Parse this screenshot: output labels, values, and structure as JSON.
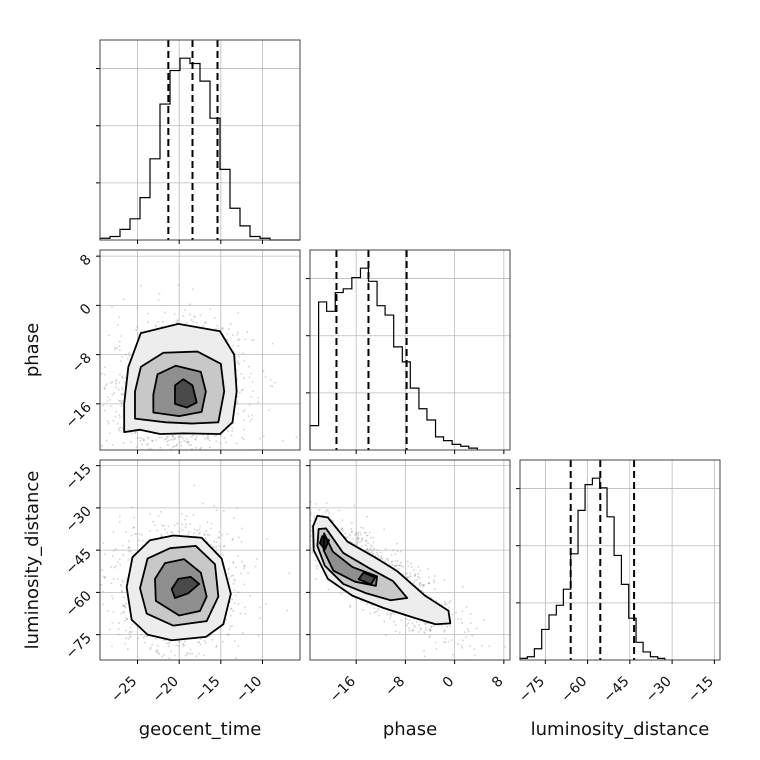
{
  "chart_data": {
    "type": "corner",
    "parameters": [
      "geocent_time",
      "phase",
      "luminosity_distance"
    ],
    "axis_labels": {
      "geocent_time": "geocent_time",
      "phase": "phase",
      "luminosity_distance": "luminosity_distance"
    },
    "ranges": {
      "geocent_time": [
        -29.5,
        -5.5
      ],
      "phase": [
        -23.5,
        9.0
      ],
      "luminosity_distance": [
        -84.0,
        -13.0
      ]
    },
    "ticks": {
      "geocent_time": [
        -25,
        -20,
        -15,
        -10
      ],
      "phase": [
        -16,
        -8,
        0,
        8
      ],
      "luminosity_distance": [
        -75,
        -60,
        -45,
        -30,
        -15
      ]
    },
    "diag_ticks_y_count": 3,
    "grid": true,
    "marginals": [
      {
        "parameter": "geocent_time",
        "quantiles": [
          -21.3,
          -18.4,
          -15.4
        ],
        "edges": [
          -29.5,
          -28.3,
          -27.1,
          -25.9,
          -24.7,
          -23.5,
          -22.3,
          -21.1,
          -19.9,
          -18.7,
          -17.5,
          -16.3,
          -15.1,
          -13.9,
          -12.7,
          -11.5,
          -10.3,
          -9.1,
          -7.9,
          -6.7,
          -5.5
        ],
        "counts": [
          1,
          2,
          6,
          12,
          24,
          46,
          77,
          96,
          103,
          100,
          90,
          69,
          40,
          18,
          8,
          2,
          1,
          0,
          0,
          0
        ]
      },
      {
        "parameter": "phase",
        "quantiles": [
          -19.2,
          -14.0,
          -7.8
        ],
        "edges": [
          -23.5,
          -22.1,
          -20.8,
          -19.4,
          -18.1,
          -16.7,
          -15.3,
          -14.0,
          -12.6,
          -11.3,
          -9.9,
          -8.5,
          -7.2,
          -5.8,
          -4.5,
          -3.1,
          -1.8,
          -0.4,
          1.0,
          2.3,
          3.7
        ],
        "counts": [
          13,
          79,
          74,
          84,
          86,
          92,
          97,
          90,
          77,
          72,
          55,
          47,
          33,
          22,
          16,
          7,
          5,
          3,
          2,
          1
        ]
      },
      {
        "parameter": "luminosity_distance",
        "quantiles": [
          -66.0,
          -55.5,
          -43.5
        ],
        "edges": [
          -84.0,
          -81.4,
          -78.9,
          -76.3,
          -73.7,
          -71.1,
          -68.6,
          -66.0,
          -63.4,
          -60.9,
          -58.3,
          -55.7,
          -53.1,
          -50.6,
          -48.0,
          -45.4,
          -42.8,
          -40.3,
          -37.7,
          -35.1,
          -32.6
        ],
        "counts": [
          1,
          2,
          7,
          19,
          28,
          34,
          44,
          66,
          93,
          109,
          113,
          107,
          89,
          65,
          47,
          26,
          11,
          5,
          2,
          1
        ]
      }
    ],
    "pairs": [
      {
        "x": "geocent_time",
        "y": "phase",
        "contours": [
          [
            [
              -26.6,
              -20.6
            ],
            [
              -24.7,
              -20.2
            ],
            [
              -22.3,
              -20.9
            ],
            [
              -19.5,
              -20.8
            ],
            [
              -15.1,
              -20.9
            ],
            [
              -13.6,
              -19.0
            ],
            [
              -13.1,
              -14.0
            ],
            [
              -13.4,
              -8.0
            ],
            [
              -15.1,
              -4.2
            ],
            [
              -20.1,
              -3.0
            ],
            [
              -24.6,
              -4.5
            ],
            [
              -26.1,
              -10.0
            ],
            [
              -26.6,
              -16.0
            ]
          ],
          [
            [
              -25.3,
              -18.4
            ],
            [
              -21.6,
              -19.0
            ],
            [
              -18.4,
              -19.2
            ],
            [
              -15.3,
              -19.0
            ],
            [
              -14.6,
              -14.0
            ],
            [
              -15.0,
              -9.5
            ],
            [
              -17.8,
              -7.5
            ],
            [
              -21.9,
              -7.7
            ],
            [
              -24.6,
              -10.0
            ],
            [
              -25.3,
              -14.0
            ]
          ],
          [
            [
              -23.1,
              -17.4
            ],
            [
              -20.0,
              -18.0
            ],
            [
              -17.3,
              -17.3
            ],
            [
              -16.8,
              -14.0
            ],
            [
              -17.4,
              -10.8
            ],
            [
              -20.4,
              -9.8
            ],
            [
              -22.6,
              -11.2
            ],
            [
              -23.1,
              -14.5
            ]
          ],
          [
            [
              -20.5,
              -16.0
            ],
            [
              -19.1,
              -16.6
            ],
            [
              -17.9,
              -15.8
            ],
            [
              -18.4,
              -13.0
            ],
            [
              -19.5,
              -12.0
            ],
            [
              -20.5,
              -13.0
            ]
          ]
        ]
      },
      {
        "x": "geocent_time",
        "y": "luminosity_distance",
        "contours": [
          [
            [
              -20.9,
              -77.0
            ],
            [
              -16.8,
              -75.8
            ],
            [
              -14.7,
              -71.3
            ],
            [
              -13.8,
              -60.5
            ],
            [
              -14.9,
              -48.0
            ],
            [
              -17.3,
              -40.6
            ],
            [
              -20.7,
              -39.8
            ],
            [
              -23.5,
              -41.5
            ],
            [
              -25.6,
              -47.5
            ],
            [
              -26.3,
              -58.2
            ],
            [
              -25.7,
              -69.7
            ],
            [
              -23.8,
              -75.0
            ]
          ],
          [
            [
              -20.7,
              -71.8
            ],
            [
              -16.7,
              -70.2
            ],
            [
              -15.3,
              -61.5
            ],
            [
              -15.7,
              -50.0
            ],
            [
              -18.0,
              -43.5
            ],
            [
              -21.1,
              -44.3
            ],
            [
              -23.8,
              -48.0
            ],
            [
              -24.7,
              -58.5
            ],
            [
              -23.9,
              -67.5
            ]
          ],
          [
            [
              -20.0,
              -68.2
            ],
            [
              -17.5,
              -66.6
            ],
            [
              -16.7,
              -61.5
            ],
            [
              -17.4,
              -53.0
            ],
            [
              -19.4,
              -48.2
            ],
            [
              -21.7,
              -49.6
            ],
            [
              -22.9,
              -55.2
            ],
            [
              -22.8,
              -63.0
            ]
          ],
          [
            [
              -20.5,
              -62.0
            ],
            [
              -18.9,
              -60.3
            ],
            [
              -17.6,
              -57.0
            ],
            [
              -18.6,
              -54.5
            ],
            [
              -20.1,
              -55.2
            ],
            [
              -20.9,
              -58.8
            ]
          ]
        ]
      },
      {
        "x": "phase",
        "y": "luminosity_distance",
        "contours": [
          [
            [
              -23.0,
              -36.5
            ],
            [
              -22.3,
              -32.8
            ],
            [
              -20.6,
              -33.4
            ],
            [
              -17.4,
              -42.0
            ],
            [
              -12.6,
              -48.0
            ],
            [
              -9.3,
              -52.5
            ],
            [
              -4.9,
              -61.0
            ],
            [
              -1.0,
              -66.5
            ],
            [
              -0.7,
              -71.0
            ],
            [
              -3.1,
              -71.3
            ],
            [
              -6.6,
              -69.0
            ],
            [
              -11.6,
              -65.5
            ],
            [
              -16.6,
              -61.2
            ],
            [
              -20.6,
              -55.2
            ],
            [
              -22.9,
              -45.0
            ]
          ],
          [
            [
              -22.1,
              -37.5
            ],
            [
              -20.9,
              -37.3
            ],
            [
              -18.1,
              -46.0
            ],
            [
              -13.8,
              -51.5
            ],
            [
              -10.0,
              -56.0
            ],
            [
              -7.7,
              -62.0
            ],
            [
              -10.4,
              -62.8
            ],
            [
              -14.5,
              -60.2
            ],
            [
              -18.1,
              -57.0
            ],
            [
              -21.1,
              -50.5
            ],
            [
              -22.3,
              -43.5
            ]
          ],
          [
            [
              -21.2,
              -39.0
            ],
            [
              -19.8,
              -45.5
            ],
            [
              -16.6,
              -51.0
            ],
            [
              -12.6,
              -54.3
            ],
            [
              -12.8,
              -57.7
            ],
            [
              -16.2,
              -56.2
            ],
            [
              -19.7,
              -52.3
            ],
            [
              -21.3,
              -45.0
            ]
          ],
          [
            [
              -14.8,
              -53.0
            ],
            [
              -12.9,
              -54.7
            ],
            [
              -13.6,
              -57.2
            ],
            [
              -15.6,
              -55.3
            ]
          ],
          [
            [
              -21.5,
              -40.0
            ],
            [
              -20.4,
              -41.5
            ],
            [
              -21.1,
              -44.8
            ],
            [
              -21.9,
              -42.5
            ]
          ]
        ]
      }
    ]
  }
}
